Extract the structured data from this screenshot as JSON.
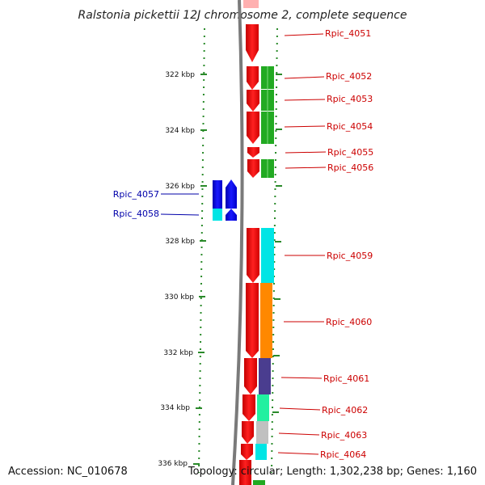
{
  "title": "Ralstonia pickettii 12J chromosome 2, complete sequence",
  "accession": "Accession: NC_010678",
  "topology": "Topology: circular; Length: 1,302,238 bp; Genes: 1,160",
  "ticks": [
    "322 kbp",
    "324 kbp",
    "326 kbp",
    "328 kbp",
    "330 kbp",
    "332 kbp",
    "334 kbp",
    "336 kbp"
  ],
  "genes_right": [
    "Rpic_4051",
    "Rpic_4052",
    "Rpic_4053",
    "Rpic_4054",
    "Rpic_4055",
    "Rpic_4056",
    "Rpic_4059",
    "Rpic_4060",
    "Rpic_4061",
    "Rpic_4062",
    "Rpic_4063",
    "Rpic_4064"
  ],
  "genes_left": [
    "Rpic_4057",
    "Rpic_4058"
  ],
  "colors": {
    "forward_cds": "#ee0000",
    "reverse_cds": "#0000ee",
    "cog_green": "#22aa22",
    "cog_cyan": "#00e5e5",
    "cog_orange": "#ff8800",
    "cog_purple": "#4a3d8f",
    "cog_teal": "#22f0a0",
    "cog_gray": "#c0c0c0",
    "backbone": "#7a7a7a",
    "tick": "#2a8a2a",
    "label_red": "#cc0000",
    "label_blue": "#0000aa"
  }
}
